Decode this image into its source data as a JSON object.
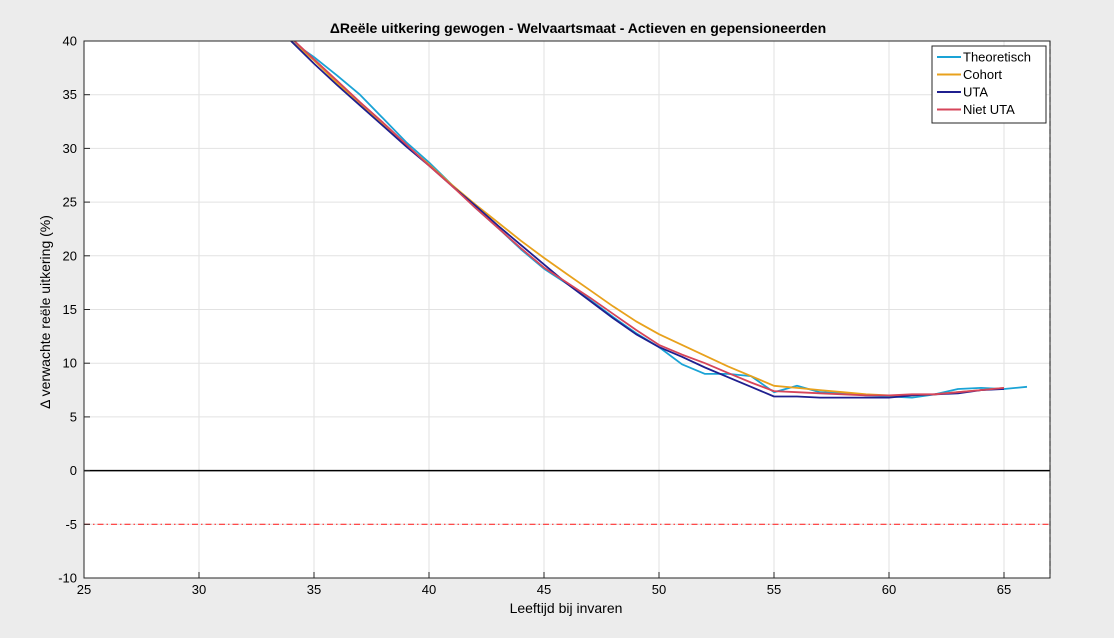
{
  "chart_data": {
    "type": "line",
    "title": "ΔReële uitkering gewogen - Welvaartsmaat - Actieven en gepensioneerden",
    "xlabel": "Leeftijd bij invaren",
    "ylabel": "Δ verwachte reële uitkering (%)",
    "xlim": [
      25,
      67
    ],
    "ylim": [
      -10,
      40
    ],
    "xticks": [
      25,
      30,
      35,
      40,
      45,
      50,
      55,
      60,
      65
    ],
    "yticks": [
      -10,
      -5,
      0,
      5,
      10,
      15,
      20,
      25,
      30,
      35,
      40
    ],
    "grid": true,
    "legend_position": "top-right",
    "series": [
      {
        "name": "Theoretisch",
        "color": "#1aa3d6",
        "x": [
          34,
          35,
          36,
          37,
          38,
          39,
          40,
          41,
          42,
          43,
          44,
          45,
          46,
          47,
          48,
          49,
          50,
          51,
          52,
          53,
          54,
          55,
          56,
          57,
          58,
          59,
          60,
          61,
          62,
          63,
          64,
          65,
          66
        ],
        "y": [
          40,
          38.5,
          36.8,
          35,
          32.8,
          30.6,
          28.7,
          26.6,
          24.5,
          22.6,
          20.6,
          18.8,
          17.4,
          15.9,
          14.3,
          12.8,
          11.5,
          9.9,
          9,
          9,
          8.8,
          7.3,
          7.9,
          7.3,
          7.2,
          7,
          6.9,
          6.8,
          7.1,
          7.6,
          7.7,
          7.6,
          7.8
        ]
      },
      {
        "name": "Cohort",
        "color": "#e8a11c",
        "x": [
          34,
          35,
          36,
          37,
          38,
          39,
          40,
          41,
          42,
          43,
          44,
          45,
          46,
          47,
          48,
          49,
          50,
          51,
          52,
          53,
          54,
          55,
          56,
          57,
          58,
          59,
          60,
          61,
          62,
          63,
          64,
          65
        ],
        "y": [
          40,
          38.2,
          36.1,
          34.2,
          32.3,
          30.3,
          28.5,
          26.6,
          24.8,
          23.1,
          21.4,
          19.8,
          18.3,
          16.8,
          15.3,
          13.9,
          12.7,
          11.7,
          10.7,
          9.7,
          8.8,
          7.9,
          7.7,
          7.5,
          7.3,
          7.1,
          7,
          7,
          7.1,
          7.3,
          7.5,
          7.7
        ]
      },
      {
        "name": "UTA",
        "color": "#1f1f8f",
        "x": [
          34,
          35,
          36,
          37,
          38,
          39,
          40,
          41,
          42,
          43,
          44,
          45,
          46,
          47,
          48,
          49,
          50,
          51,
          52,
          53,
          54,
          55,
          56,
          57,
          58,
          59,
          60,
          61,
          62,
          63,
          64,
          65
        ],
        "y": [
          40,
          37.9,
          35.9,
          34,
          32.1,
          30.2,
          28.4,
          26.5,
          24.7,
          22.8,
          21,
          19.2,
          17.4,
          15.8,
          14.2,
          12.7,
          11.5,
          10.6,
          9.6,
          8.7,
          7.8,
          6.9,
          6.9,
          6.8,
          6.8,
          6.8,
          6.8,
          7,
          7.1,
          7.2,
          7.5,
          7.6
        ]
      },
      {
        "name": "Niet UTA",
        "color": "#d6455a",
        "x": [
          34,
          35,
          36,
          37,
          38,
          39,
          40,
          41,
          42,
          43,
          44,
          45,
          46,
          47,
          48,
          49,
          50,
          51,
          52,
          53,
          54,
          55,
          56,
          57,
          58,
          59,
          60,
          61,
          62,
          63,
          64,
          65
        ],
        "y": [
          40.3,
          38.3,
          36.3,
          34.3,
          32.4,
          30.4,
          28.4,
          26.5,
          24.5,
          22.6,
          20.7,
          18.9,
          17.5,
          16.1,
          14.6,
          13.1,
          11.7,
          10.8,
          10,
          9.1,
          8.2,
          7.4,
          7.3,
          7.2,
          7.1,
          7,
          7,
          7.1,
          7.1,
          7.3,
          7.5,
          7.7
        ]
      }
    ],
    "reference_lines": [
      {
        "axis": "y",
        "value": 0,
        "color": "#000000",
        "style": "solid"
      },
      {
        "axis": "y",
        "value": -5,
        "color": "#ff3333",
        "style": "dash-dot"
      },
      {
        "axis": "x",
        "value": 67,
        "color": "#000000",
        "style": "dashed"
      }
    ]
  }
}
